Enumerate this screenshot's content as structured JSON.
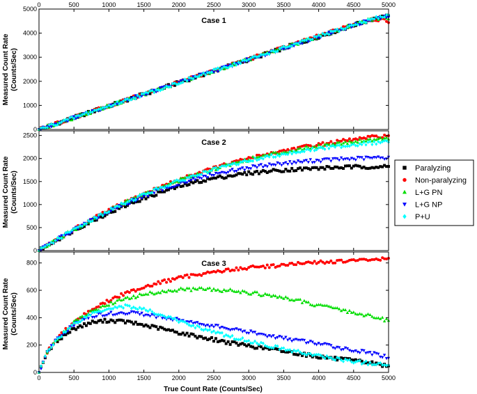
{
  "chart_data": {
    "type": "scatter",
    "xlabel": "True Count Rate (Counts/Sec)",
    "ylabel_line1": "Measured Count Rate",
    "ylabel_line2": "(Counts/Sec)",
    "xlim": [
      0,
      5000
    ],
    "x_ticks": [
      0,
      500,
      1000,
      1500,
      2000,
      2500,
      3000,
      3500,
      4000,
      4500,
      5000
    ],
    "x_tick_labels": [
      "0",
      "500",
      "1000",
      "1500",
      "2000",
      "2500",
      "3000",
      "3500",
      "4000",
      "4500",
      "5000"
    ],
    "grid": false,
    "legend_position": "right",
    "series_meta": [
      {
        "name": "Paralyzing",
        "color": "#000000",
        "marker": "square"
      },
      {
        "name": "Non-paralyzing",
        "color": "#ff0000",
        "marker": "circle"
      },
      {
        "name": "L+G PN",
        "color": "#00dd00",
        "marker": "triangle-up"
      },
      {
        "name": "L+G NP",
        "color": "#0000ff",
        "marker": "triangle-down"
      },
      {
        "name": "P+U",
        "color": "#00ffff",
        "marker": "diamond"
      }
    ],
    "panels": [
      {
        "title": "Case 1",
        "ylim": [
          0,
          5000
        ],
        "y_ticks": [
          0,
          1000,
          2000,
          3000,
          4000,
          5000
        ],
        "y_tick_labels": [
          "0",
          "1000",
          "2000",
          "3000",
          "4000",
          "5000"
        ],
        "x": [
          0,
          250,
          500,
          750,
          1000,
          1250,
          1500,
          1750,
          2000,
          2250,
          2500,
          2750,
          3000,
          3250,
          3500,
          3750,
          4000,
          4250,
          4500,
          4750,
          5000
        ],
        "series": [
          {
            "values": [
              0,
              245,
              490,
              735,
              975,
              1220,
              1460,
              1700,
              1945,
              2185,
              2425,
              2665,
              2905,
              3140,
              3380,
              3620,
              3855,
              4090,
              4330,
              4560,
              4700
            ]
          },
          {
            "values": [
              0,
              245,
              490,
              735,
              980,
              1225,
              1470,
              1710,
              1955,
              2195,
              2440,
              2680,
              2920,
              3160,
              3400,
              3640,
              3880,
              4120,
              4360,
              4600,
              4500
            ]
          },
          {
            "values": [
              0,
              245,
              490,
              735,
              978,
              1222,
              1465,
              1705,
              1950,
              2190,
              2432,
              2672,
              2912,
              3150,
              3390,
              3630,
              3868,
              4105,
              4345,
              4580,
              4650
            ]
          },
          {
            "values": [
              0,
              244,
              488,
              732,
              975,
              1218,
              1460,
              1700,
              1942,
              2182,
              2422,
              2660,
              2900,
              3138,
              3375,
              3612,
              3850,
              4085,
              4320,
              4555,
              4680
            ]
          },
          {
            "values": [
              0,
              245,
              490,
              734,
              977,
              1220,
              1462,
              1703,
              1946,
              2186,
              2428,
              2668,
              2908,
              3145,
              3385,
              3622,
              3860,
              4098,
              4335,
              4570,
              4750
            ]
          }
        ]
      },
      {
        "title": "Case 2",
        "ylim": [
          0,
          2600
        ],
        "y_ticks": [
          0,
          500,
          1000,
          1500,
          2000,
          2500
        ],
        "y_tick_labels": [
          "0",
          "500",
          "1000",
          "1500",
          "2000",
          "2500"
        ],
        "x": [
          0,
          250,
          500,
          750,
          1000,
          1250,
          1500,
          1750,
          2000,
          2250,
          2500,
          2750,
          3000,
          3250,
          3500,
          3750,
          4000,
          4250,
          4500,
          4750,
          5000
        ],
        "series": [
          {
            "values": [
              0,
              230,
              440,
              640,
              820,
              985,
              1135,
              1270,
              1390,
              1490,
              1570,
              1630,
              1680,
              1720,
              1750,
              1770,
              1790,
              1805,
              1815,
              1820,
              1820
            ]
          },
          {
            "values": [
              0,
              235,
              460,
              675,
              875,
              1060,
              1230,
              1390,
              1535,
              1670,
              1790,
              1900,
              2000,
              2090,
              2170,
              2240,
              2300,
              2360,
              2410,
              2460,
              2500
            ]
          },
          {
            "values": [
              0,
              234,
              458,
              672,
              870,
              1055,
              1225,
              1382,
              1525,
              1658,
              1778,
              1885,
              1982,
              2070,
              2145,
              2212,
              2272,
              2325,
              2370,
              2410,
              2450
            ]
          },
          {
            "values": [
              0,
              232,
              450,
              655,
              845,
              1020,
              1180,
              1325,
              1450,
              1560,
              1655,
              1735,
              1800,
              1855,
              1895,
              1930,
              1958,
              1980,
              1995,
              2010,
              2020
            ]
          },
          {
            "values": [
              0,
              234,
              456,
              668,
              866,
              1050,
              1218,
              1372,
              1512,
              1640,
              1755,
              1860,
              1950,
              2030,
              2100,
              2160,
              2215,
              2262,
              2300,
              2335,
              2365
            ]
          }
        ]
      },
      {
        "title": "Case 3",
        "ylim": [
          0,
          880
        ],
        "y_ticks": [
          0,
          200,
          400,
          600,
          800
        ],
        "y_tick_labels": [
          "0",
          "200",
          "400",
          "600",
          "800"
        ],
        "x": [
          0,
          100,
          250,
          500,
          750,
          1000,
          1250,
          1500,
          1750,
          2000,
          2250,
          2500,
          2750,
          3000,
          3250,
          3500,
          3750,
          4000,
          4250,
          4500,
          4750,
          5000
        ],
        "series": [
          {
            "values": [
              0,
              130,
              230,
              320,
              365,
              380,
              370,
              345,
              320,
              290,
              265,
              240,
              215,
              195,
              175,
              155,
              135,
              115,
              100,
              85,
              70,
              45
            ]
          },
          {
            "values": [
              0,
              135,
              245,
              370,
              460,
              525,
              580,
              625,
              660,
              690,
              715,
              735,
              750,
              765,
              775,
              785,
              795,
              805,
              810,
              815,
              825,
              830
            ]
          },
          {
            "values": [
              0,
              135,
              243,
              365,
              445,
              500,
              540,
              570,
              590,
              605,
              608,
              605,
              598,
              585,
              565,
              545,
              520,
              490,
              465,
              440,
              410,
              380
            ]
          },
          {
            "values": [
              0,
              132,
              238,
              350,
              410,
              430,
              435,
              425,
              405,
              385,
              360,
              340,
              315,
              295,
              270,
              250,
              230,
              210,
              185,
              160,
              140,
              110
            ]
          },
          {
            "values": [
              0,
              133,
              240,
              355,
              430,
              470,
              485,
              460,
              420,
              375,
              335,
              295,
              260,
              230,
              200,
              170,
              145,
              120,
              100,
              80,
              65,
              50
            ]
          }
        ]
      }
    ]
  }
}
